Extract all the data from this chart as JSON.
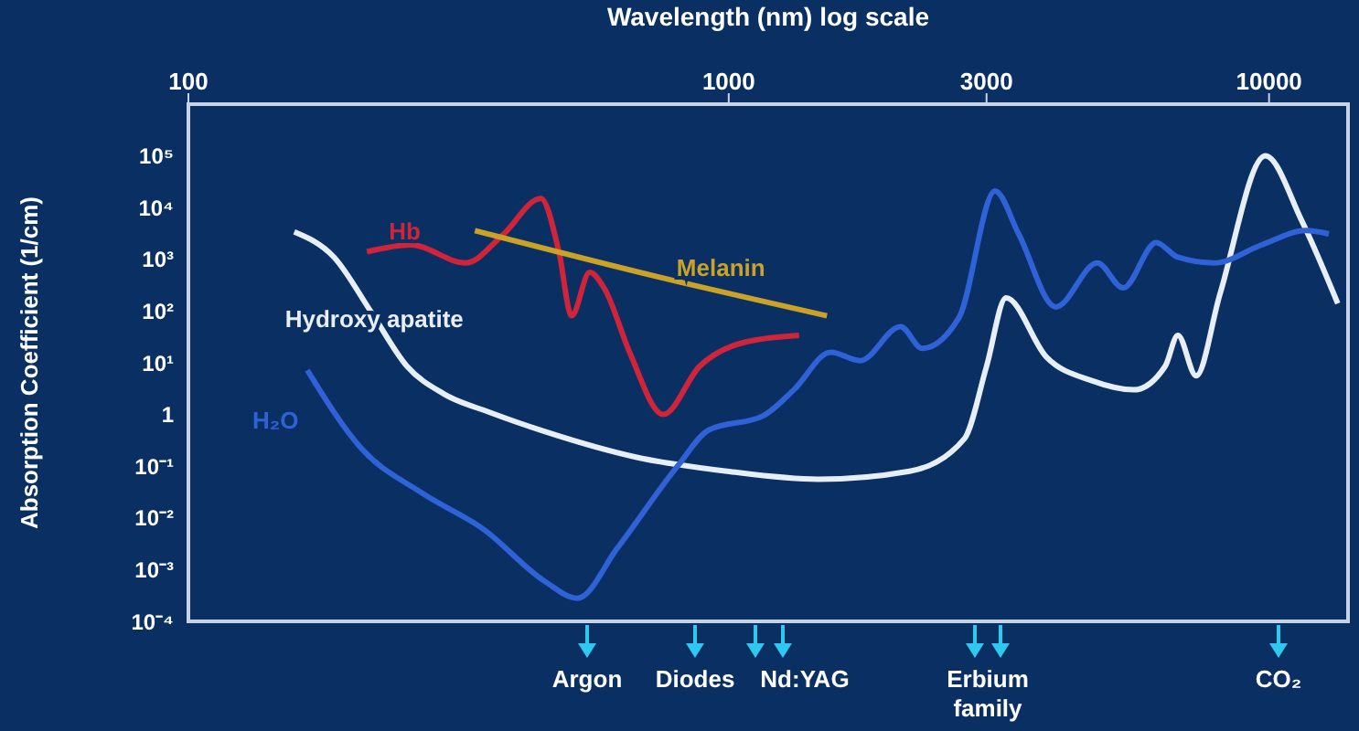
{
  "chart_data": {
    "type": "line",
    "xlabel": "Wavelength (nm) log scale",
    "ylabel": "Absorption Coefficient (1/cm)",
    "log": "xy",
    "xlim": [
      100,
      14000
    ],
    "xticks": [
      100,
      1000,
      3000,
      10000
    ],
    "ylim": [
      0.0001,
      1000000
    ],
    "yticks": [
      {
        "value": 0.0001,
        "label": "10⁻⁴"
      },
      {
        "value": 0.001,
        "label": "10⁻³"
      },
      {
        "value": 0.01,
        "label": "10⁻²"
      },
      {
        "value": 0.1,
        "label": "10⁻¹"
      },
      1,
      {
        "value": 10,
        "label": "10¹"
      },
      {
        "value": 100,
        "label": "10²"
      },
      {
        "value": 1000,
        "label": "10³"
      },
      {
        "value": 10000,
        "label": "10⁴"
      },
      {
        "value": 100000,
        "label": "10⁵"
      }
    ],
    "series": [
      {
        "name": "Hb",
        "color": "#d0243a",
        "x": [
          214,
          258,
          326,
          381,
          449,
          485,
          512,
          553,
          589,
          657,
          756,
          883,
          1070,
          1350
        ],
        "values": [
          1400,
          1900,
          850,
          2900,
          15000,
          1400,
          81,
          560,
          270,
          15,
          1,
          8.5,
          25,
          34
        ]
      },
      {
        "name": "Melanin",
        "color": "#c9a227",
        "x": [
          339,
          727,
          1520
        ],
        "values": [
          3600,
          480,
          81
        ]
      },
      {
        "name": "Hydroxy apatite",
        "color": "#e8eef5",
        "x": [
          157,
          186,
          218,
          254,
          297,
          361,
          456,
          673,
          993,
          1465,
          2160,
          2730,
          3000,
          3260,
          3870,
          4700,
          5620,
          6420,
          6780,
          7330,
          8110,
          9840,
          11500,
          13400
        ],
        "values": [
          3400,
          1100,
          95,
          8.5,
          2.5,
          1.1,
          0.47,
          0.15,
          0.08,
          0.056,
          0.08,
          0.34,
          8.5,
          180,
          13,
          4.5,
          3,
          8.5,
          34,
          5.6,
          210,
          100000,
          5500,
          140
        ]
      },
      {
        "name": "H₂O",
        "color": "#2f62d6",
        "x": [
          166,
          209,
          271,
          352,
          456,
          525,
          622,
          804,
          918,
          1160,
          1320,
          1545,
          1750,
          2080,
          2280,
          2670,
          3110,
          3440,
          4030,
          4810,
          5370,
          6180,
          6780,
          7920,
          9690,
          11700,
          12900
        ],
        "values": [
          7.2,
          0.22,
          0.03,
          0.006,
          0.0006,
          0.00028,
          0.0026,
          0.1,
          0.5,
          0.95,
          3,
          16,
          11,
          50,
          19,
          76,
          21000,
          3100,
          120,
          850,
          280,
          2100,
          1100,
          850,
          1900,
          3600,
          3100
        ]
      }
    ],
    "annotations": [
      "Argon",
      "Diodes",
      "Nd:YAG",
      "Erbium family",
      "CO₂"
    ]
  }
}
